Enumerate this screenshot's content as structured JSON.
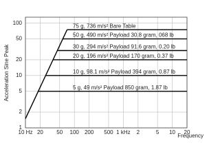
{
  "chart_data": {
    "type": "line",
    "y_label": "Acceleration Sine Peak",
    "x_label": "Frequency",
    "log_x": true,
    "log_y": true,
    "grid": true,
    "xlim": [
      10,
      20000
    ],
    "xticks": [
      {
        "value": 10,
        "label": "10 Hz"
      },
      20,
      50,
      100,
      200,
      500,
      {
        "value": 1000,
        "label": "1 kHz"
      },
      {
        "value": 2000,
        "label": "2"
      },
      {
        "value": 5000,
        "label": "5"
      },
      {
        "value": 10000,
        "label": "10"
      },
      {
        "value": 20000,
        "label": "20"
      }
    ],
    "ylim": [
      1,
      130
    ],
    "yticks": [
      1,
      2,
      5,
      10,
      20,
      50,
      100
    ],
    "series": [
      {
        "color": "#000000",
        "x": [
          10,
          71
        ],
        "values": [
          1.5,
          75
        ]
      },
      {
        "name": "75 g, 736 m/s² Bare Table",
        "color": "#000000",
        "x": [
          71,
          20000
        ],
        "values": [
          75,
          75
        ]
      },
      {
        "name": "50 g, 490 m/s² Payload 30.8 gram, 068 lb",
        "color": "#000000",
        "x": [
          58,
          20000
        ],
        "values": [
          50,
          50
        ]
      },
      {
        "name": "30 g, 294 m/s² Payload 91.6 gram, 0.20 lb",
        "color": "#000000",
        "x": [
          45,
          20000
        ],
        "values": [
          30,
          30
        ]
      },
      {
        "name": "20 g, 196 m/s² Payload 170 gram, 0.37 lb",
        "color": "#000000",
        "x": [
          37,
          20000
        ],
        "values": [
          20,
          20
        ]
      },
      {
        "name": "10 g, 98.1 m/s² Payload 394 gram, 0.87 lb",
        "color": "#000000",
        "x": [
          26,
          20000
        ],
        "values": [
          10,
          10
        ]
      },
      {
        "name": "5 g, 49 m/s² Payload 850 gram, 1.87 lb",
        "color": "#000000",
        "x": [
          18,
          20000
        ],
        "values": [
          5,
          5
        ]
      }
    ]
  }
}
